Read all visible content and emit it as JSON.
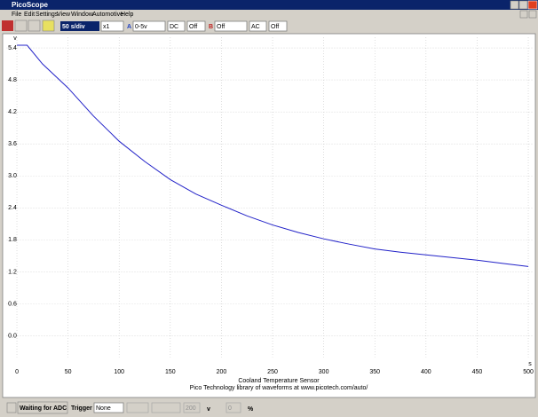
{
  "window": {
    "title": "PicoScope",
    "menu": [
      "File",
      "Edit",
      "Settings",
      "View",
      "Window",
      "Automotive",
      "Help"
    ]
  },
  "toolbar": {
    "timebase": "50 s/div",
    "multiplier": "x1",
    "channel_a": "A",
    "range_a": "0-5v",
    "coupling_a": "DC",
    "offset_a": "Off",
    "channel_b": "B",
    "range_b": "Off",
    "coupling_b": "AC",
    "offset_b": "Off"
  },
  "chart_data": {
    "type": "line",
    "title": "Cooland Temperature Sensor",
    "subtitle": "Pico Technology library of waveforms at www.picotech.com/auto/",
    "x_label": "s",
    "y_label": "v",
    "x": [
      0,
      10,
      25,
      50,
      75,
      100,
      125,
      150,
      175,
      200,
      225,
      250,
      275,
      300,
      325,
      350,
      375,
      400,
      425,
      450,
      475,
      500
    ],
    "series": [
      {
        "color": "#2222c8",
        "values": [
          5.45,
          5.45,
          5.1,
          4.65,
          4.12,
          3.65,
          3.27,
          2.93,
          2.66,
          2.45,
          2.25,
          2.08,
          1.94,
          1.82,
          1.72,
          1.63,
          1.57,
          1.52,
          1.47,
          1.42,
          1.36,
          1.3
        ]
      }
    ],
    "xlim": [
      -10,
      505
    ],
    "ylim": [
      -0.4,
      5.6
    ],
    "xticks": [
      0,
      50,
      100,
      150,
      200,
      250,
      300,
      350,
      400,
      450,
      500
    ],
    "yticks": [
      {
        "value": 0,
        "label": "0.0"
      },
      0.6,
      1.2,
      1.8,
      2.4,
      {
        "value": 3,
        "label": "3.0"
      },
      3.6,
      4.2,
      4.8,
      5.4
    ],
    "grid": true
  },
  "status": {
    "state": "Waiting for ADC",
    "trigger_label": "Trigger",
    "trigger_mode": "None",
    "level": "200",
    "level_unit": "v",
    "delay": "0",
    "delay_unit": "%"
  }
}
